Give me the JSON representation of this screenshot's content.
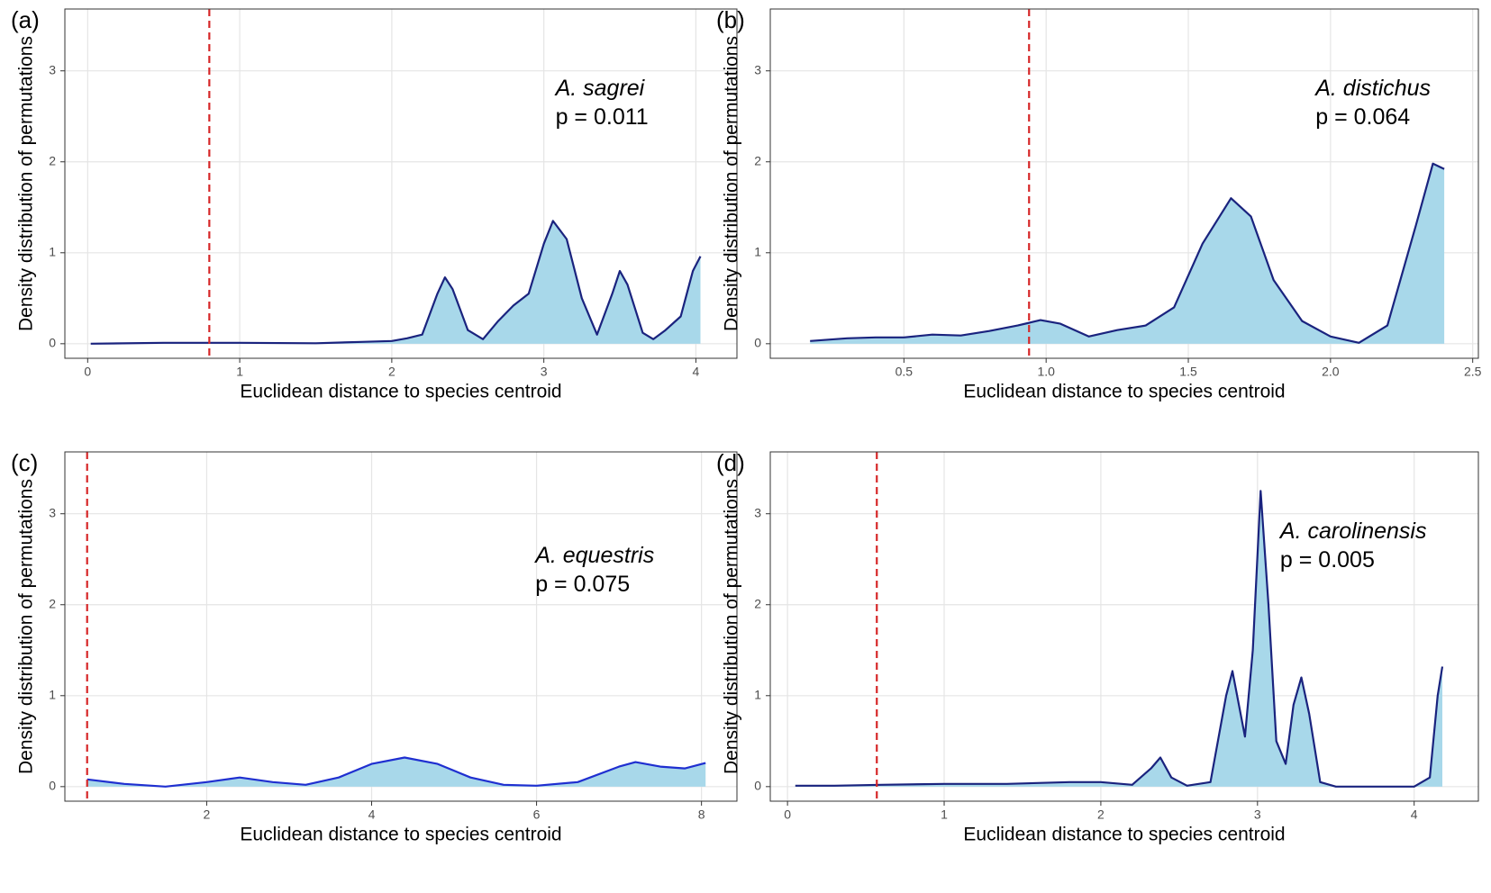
{
  "chart_data": [
    {
      "type": "area",
      "panel_label": "(a)",
      "species": "A. sagrei",
      "p_label": "p = 0.011",
      "x": [
        0.02,
        0.5,
        1.0,
        1.5,
        1.8,
        2.0,
        2.1,
        2.2,
        2.3,
        2.35,
        2.4,
        2.5,
        2.6,
        2.7,
        2.8,
        2.9,
        3.0,
        3.06,
        3.15,
        3.25,
        3.35,
        3.45,
        3.5,
        3.55,
        3.65,
        3.72,
        3.8,
        3.9,
        3.98,
        4.03
      ],
      "values": [
        0,
        0.01,
        0.01,
        0.005,
        0.02,
        0.03,
        0.06,
        0.1,
        0.55,
        0.73,
        0.6,
        0.15,
        0.05,
        0.25,
        0.42,
        0.55,
        1.1,
        1.35,
        1.15,
        0.5,
        0.1,
        0.55,
        0.8,
        0.65,
        0.12,
        0.05,
        0.15,
        0.3,
        0.8,
        0.96
      ],
      "observed": 0.8,
      "xlim": [
        -0.15,
        4.27
      ],
      "ylim": [
        -0.16,
        3.68
      ],
      "xticks": [
        0,
        1,
        2,
        3,
        4
      ],
      "yticks": [
        0,
        1,
        2,
        3
      ],
      "x_label": "Euclidean distance to species centroid",
      "y_label": "Density distribution of permutations",
      "fill_color": "#a8d8ea",
      "line_color": "#1a237e",
      "observed_color": "#d62728",
      "grid": true
    },
    {
      "type": "area",
      "panel_label": "(b)",
      "species": "A. distichus",
      "p_label": "p = 0.064",
      "x": [
        0.17,
        0.3,
        0.4,
        0.5,
        0.6,
        0.7,
        0.8,
        0.9,
        0.98,
        1.05,
        1.15,
        1.25,
        1.35,
        1.45,
        1.55,
        1.65,
        1.72,
        1.8,
        1.9,
        2.0,
        2.1,
        2.2,
        2.3,
        2.36,
        2.4
      ],
      "values": [
        0.03,
        0.06,
        0.07,
        0.07,
        0.1,
        0.09,
        0.14,
        0.2,
        0.26,
        0.22,
        0.08,
        0.15,
        0.2,
        0.4,
        1.1,
        1.6,
        1.4,
        0.7,
        0.25,
        0.08,
        0.01,
        0.2,
        1.3,
        1.98,
        1.92
      ],
      "observed": 0.94,
      "xlim": [
        0.03,
        2.52
      ],
      "ylim": [
        -0.16,
        3.68
      ],
      "xticks": [
        0.5,
        {
          "value": 1,
          "label": "1.0"
        },
        1.5,
        {
          "value": 2,
          "label": "2.0"
        },
        2.5
      ],
      "yticks": [
        0,
        1,
        2,
        3
      ],
      "x_label": "Euclidean distance to species centroid",
      "y_label": "Density distribution of permutations",
      "fill_color": "#a8d8ea",
      "line_color": "#1a237e",
      "observed_color": "#d62728",
      "grid": true
    },
    {
      "type": "area",
      "panel_label": "(c)",
      "species": "A. equestris",
      "p_label": "p = 0.075",
      "x": [
        0.55,
        1.0,
        1.5,
        2.0,
        2.4,
        2.8,
        3.2,
        3.6,
        4.0,
        4.4,
        4.8,
        5.2,
        5.6,
        6.0,
        6.5,
        7.0,
        7.2,
        7.5,
        7.8,
        8.05
      ],
      "values": [
        0.08,
        0.03,
        0,
        0.05,
        0.1,
        0.05,
        0.02,
        0.1,
        0.25,
        0.32,
        0.25,
        0.1,
        0.02,
        0.01,
        0.05,
        0.22,
        0.27,
        0.22,
        0.2,
        0.26
      ],
      "observed": 0.55,
      "xlim": [
        0.28,
        8.43
      ],
      "ylim": [
        -0.16,
        3.68
      ],
      "xticks": [
        2,
        4,
        6,
        8
      ],
      "yticks": [
        0,
        1,
        2,
        3
      ],
      "x_label": "Euclidean distance to species centroid",
      "y_label": "Density distribution of permutations",
      "fill_color": "#a8d8ea",
      "line_color": "#1f2fd0",
      "observed_color": "#d62728",
      "grid": true
    },
    {
      "type": "area",
      "panel_label": "(d)",
      "species": "A. carolinensis",
      "p_label": "p = 0.005",
      "x": [
        0.05,
        0.3,
        0.6,
        1.0,
        1.4,
        1.8,
        2.0,
        2.2,
        2.32,
        2.38,
        2.45,
        2.55,
        2.7,
        2.8,
        2.84,
        2.92,
        2.97,
        3.02,
        3.07,
        3.12,
        3.18,
        3.23,
        3.28,
        3.33,
        3.4,
        3.5,
        4.0,
        4.1,
        4.15,
        4.18
      ],
      "values": [
        0.01,
        0.01,
        0.02,
        0.03,
        0.03,
        0.05,
        0.05,
        0.02,
        0.2,
        0.32,
        0.1,
        0.01,
        0.05,
        1.0,
        1.27,
        0.55,
        1.5,
        3.25,
        2.0,
        0.5,
        0.25,
        0.9,
        1.2,
        0.8,
        0.05,
        0,
        0,
        0.1,
        1.0,
        1.32
      ],
      "observed": 0.57,
      "xlim": [
        -0.11,
        4.41
      ],
      "ylim": [
        -0.16,
        3.68
      ],
      "xticks": [
        0,
        1,
        2,
        3,
        4
      ],
      "yticks": [
        0,
        1,
        2,
        3
      ],
      "x_label": "Euclidean distance to species centroid",
      "y_label": "Density distribution of permutations",
      "fill_color": "#a8d8ea",
      "line_color": "#1a237e",
      "observed_color": "#d62728",
      "grid": true
    }
  ]
}
